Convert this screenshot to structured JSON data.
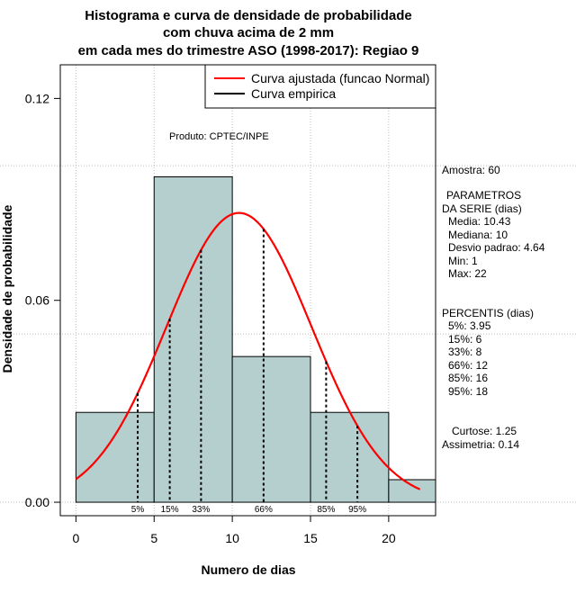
{
  "chart_data": {
    "type": "histogram",
    "title_lines": [
      "Histograma e curva de densidade de probabilidade",
      "com chuva acima de 2 mm",
      "em cada mes do trimestre ASO (1998-2017): Regiao 9"
    ],
    "xlabel": "Numero de dias",
    "ylabel": "Densidade de probabilidade",
    "xlim": [
      -1,
      23
    ],
    "ylim": [
      -0.004,
      0.13
    ],
    "x_ticks": [
      0,
      5,
      10,
      15,
      20
    ],
    "y_ticks": [
      0.0,
      0.06,
      0.12
    ],
    "y_tick_labels": [
      "0.00",
      "0.06",
      "0.12"
    ],
    "x_gridlines": [
      0,
      5,
      10,
      15,
      20
    ],
    "y_gridlines": [
      0.0,
      0.05,
      0.1
    ],
    "bins": [
      {
        "from": 0,
        "to": 5,
        "density": 0.0267
      },
      {
        "from": 5,
        "to": 10,
        "density": 0.0967
      },
      {
        "from": 10,
        "to": 15,
        "density": 0.0433
      },
      {
        "from": 15,
        "to": 20,
        "density": 0.0267
      },
      {
        "from": 20,
        "to": 23,
        "density": 0.0067
      }
    ],
    "bar_color": "#b5cece",
    "normal_curve": {
      "mean": 10.43,
      "sd": 4.64,
      "x_from": 0,
      "x_to": 22,
      "color": "#ff0000"
    },
    "percentile_lines": [
      {
        "label": "5%",
        "x": 3.95
      },
      {
        "label": "15%",
        "x": 6
      },
      {
        "label": "33%",
        "x": 8
      },
      {
        "label": "66%",
        "x": 12
      },
      {
        "label": "85%",
        "x": 16
      },
      {
        "label": "95%",
        "x": 18
      }
    ],
    "legend": [
      {
        "label": "Curva ajustada (funcao Normal)",
        "color": "#ff0000"
      },
      {
        "label": "Curva empirica",
        "color": "#000000"
      }
    ],
    "legend_position": "top-right",
    "annotation": "Produto: CPTEC/INPE"
  },
  "side_panel": {
    "sample": "Amostra: 60",
    "params_title_1": "PARAMETROS",
    "params_title_2": "DA SERIE (dias)",
    "params": [
      "Media: 10.43",
      "Mediana: 10",
      "Desvio padrao: 4.64",
      "Min: 1",
      "Max: 22"
    ],
    "percentis_title": "PERCENTIS (dias)",
    "percentis": [
      "5%: 3.95",
      "15%: 6",
      "33%: 8",
      "66%: 12",
      "85%: 16",
      "95%: 18"
    ],
    "kurtosis": "Curtose: 1.25",
    "skewness": "Assimetria: 0.14"
  }
}
